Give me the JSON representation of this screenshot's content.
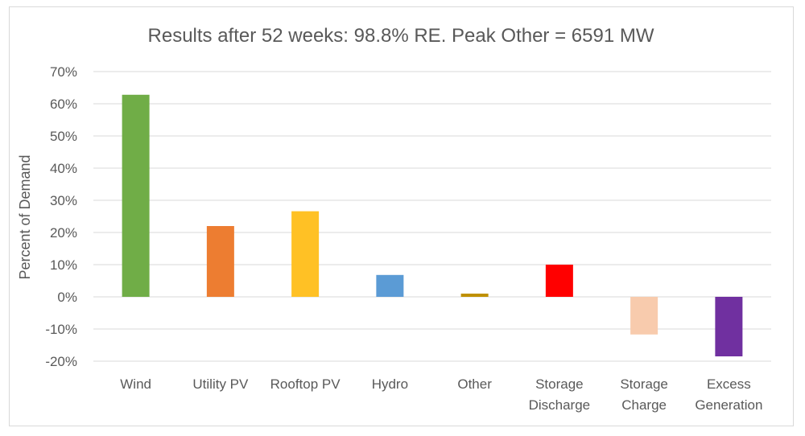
{
  "chart_data": {
    "type": "bar",
    "title": "Results after 52 weeks: 98.8% RE. Peak Other = 6591 MW",
    "xlabel": "",
    "ylabel": "Percent of Demand",
    "ylim": [
      -20,
      70
    ],
    "yticks": [
      "70%",
      "60%",
      "50%",
      "40%",
      "30%",
      "20%",
      "10%",
      "0%",
      "-10%",
      "-20%"
    ],
    "ytick_values": [
      70,
      60,
      50,
      40,
      30,
      20,
      10,
      0,
      -10,
      -20
    ],
    "grid": true,
    "legend": "none",
    "categories": [
      [
        "Wind"
      ],
      [
        "Utility PV"
      ],
      [
        "Rooftop PV"
      ],
      [
        "Hydro"
      ],
      [
        "Other"
      ],
      [
        "Storage",
        "Discharge"
      ],
      [
        "Storage",
        "Charge"
      ],
      [
        "Excess",
        "Generation"
      ]
    ],
    "values": [
      62.8,
      22.0,
      26.6,
      6.8,
      1.0,
      10.0,
      -11.7,
      -18.5
    ],
    "colors": [
      "#70ad47",
      "#ed7d31",
      "#ffc125",
      "#5b9bd5",
      "#bf9000",
      "#ff0000",
      "#f8cbad",
      "#7030a0"
    ]
  }
}
